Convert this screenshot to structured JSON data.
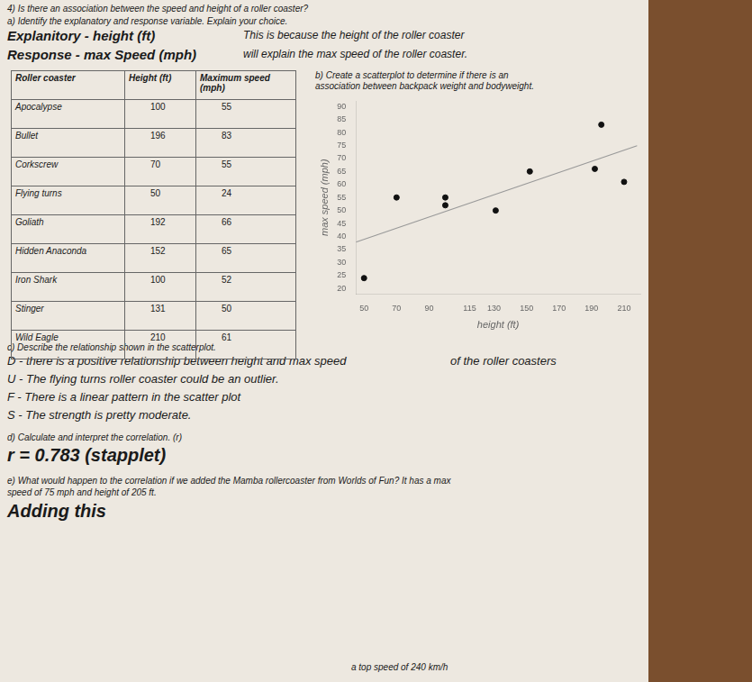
{
  "chart_data": {
    "type": "scatter",
    "title": "4) Is there an association between the speed and height of a roller coaster?",
    "annotations": [
      "a) Identify the explanatory and response variable. Explain your choice.",
      "Explanitory - height (ft)",
      "This is because the height of the roller coaster",
      "Response - max Speed (mph)",
      "will explain the max speed of the roller coaster.",
      "b) Create a scatterplot to determine if there is an",
      "association between backpack weight and bodyweight.",
      "c) Describe the relationship shown in the scatterplot.",
      "D - there is a positive relationship between height and max speed",
      "of the roller coasters",
      "U - The flying turns roller coaster could be an outlier.",
      "F - There is a linear pattern in the scatter plot",
      "S - The strength is pretty moderate.",
      "d) Calculate and interpret the correlation. (r)",
      "r = 0.783  (stapplet)",
      "e) What would happen to the correlation if we added the Mamba rollercoaster from Worlds of Fun? It has a max",
      "speed of 75 mph and height of 205 ft.",
      "Adding this",
      "a top speed of 240 km/h"
    ],
    "table": {
      "headers": [
        "Roller coaster",
        "Height (ft)",
        "Maximum speed (mph)"
      ],
      "rows": [
        [
          "Apocalypse",
          "100",
          "55"
        ],
        [
          "Bullet",
          "196",
          "83"
        ],
        [
          "Corkscrew",
          "70",
          "55"
        ],
        [
          "Flying turns",
          "50",
          "24"
        ],
        [
          "Goliath",
          "192",
          "66"
        ],
        [
          "Hidden Anaconda",
          "152",
          "65"
        ],
        [
          "Iron Shark",
          "100",
          "52"
        ],
        [
          "Stinger",
          "131",
          "50"
        ],
        [
          "Wild Eagle",
          "210",
          "61"
        ]
      ]
    },
    "x_label": "height (ft)",
    "y_label": "max speed (mph)",
    "series": [
      {
        "type": "scatter",
        "color": "#111111",
        "marker": "circle",
        "x": [
          100,
          196,
          70,
          50,
          192,
          152,
          100,
          131,
          210
        ],
        "values": [
          55,
          83,
          55,
          24,
          66,
          65,
          52,
          50,
          61
        ]
      },
      {
        "type": "line",
        "color": "#999999",
        "line_style": "solid",
        "x": [
          45,
          218
        ],
        "values": [
          37.8198,
          74.9022
        ]
      }
    ],
    "xlim": [
      45,
      220
    ],
    "xticks": [
      50,
      70,
      90,
      115,
      130,
      150,
      170,
      190,
      210
    ],
    "ylim": [
      18,
      92
    ],
    "yticks": [
      20,
      25,
      30,
      35,
      40,
      45,
      50,
      55,
      60,
      65,
      70,
      75,
      80,
      85,
      90
    ],
    "grid": false
  }
}
